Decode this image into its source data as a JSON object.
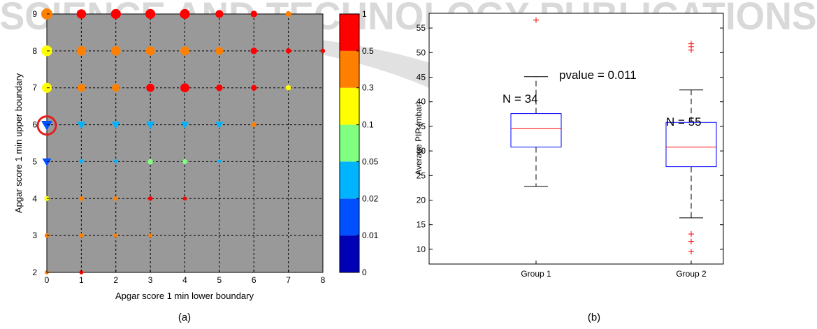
{
  "watermark": {
    "text": "SCIENCE AND TECHNOLOGY PUBLICATIONS",
    "color": "#d9d9d9"
  },
  "panels": {
    "a": "(a)",
    "b": "(b)"
  },
  "chart_data": [
    {
      "type": "scatter",
      "xlabel": "Apgar score 1 min lower boundary",
      "ylabel": "Apgar score 1 min upper boundary",
      "xlim": [
        0,
        8
      ],
      "ylim": [
        2,
        9
      ],
      "xticks": [
        "0",
        "1",
        "2",
        "3",
        "4",
        "5",
        "6",
        "7",
        "8"
      ],
      "yticks": [
        "2",
        "3",
        "4",
        "5",
        "6",
        "7",
        "8",
        "9"
      ],
      "grid": true,
      "background": "#999999",
      "colorbar": {
        "labels": [
          "0",
          "0.01",
          "0.02",
          "0.05",
          "0.1",
          "0.3",
          "0.5",
          "1"
        ],
        "colors": [
          "#0000b4",
          "#0050ff",
          "#00b4ff",
          "#80ff80",
          "#ffff00",
          "#ff8000",
          "#ff0000"
        ]
      },
      "points": [
        {
          "x": 0,
          "y": 9,
          "v": 0.4,
          "size": 1.0
        },
        {
          "x": 1,
          "y": 9,
          "v": 0.8,
          "size": 0.8
        },
        {
          "x": 2,
          "y": 9,
          "v": 0.8,
          "size": 0.85
        },
        {
          "x": 3,
          "y": 9,
          "v": 0.8,
          "size": 0.85
        },
        {
          "x": 4,
          "y": 9,
          "v": 0.8,
          "size": 0.85
        },
        {
          "x": 5,
          "y": 9,
          "v": 0.8,
          "size": 0.6
        },
        {
          "x": 6,
          "y": 9,
          "v": 0.8,
          "size": 0.45
        },
        {
          "x": 7,
          "y": 9,
          "v": 0.4,
          "size": 0.35
        },
        {
          "x": 0,
          "y": 8,
          "v": 0.2,
          "size": 0.95
        },
        {
          "x": 1,
          "y": 8,
          "v": 0.4,
          "size": 0.8
        },
        {
          "x": 2,
          "y": 8,
          "v": 0.4,
          "size": 0.8
        },
        {
          "x": 3,
          "y": 8,
          "v": 0.4,
          "size": 0.75
        },
        {
          "x": 4,
          "y": 8,
          "v": 0.4,
          "size": 0.75
        },
        {
          "x": 5,
          "y": 8,
          "v": 0.4,
          "size": 0.6
        },
        {
          "x": 6,
          "y": 8,
          "v": 0.8,
          "size": 0.45
        },
        {
          "x": 7,
          "y": 8,
          "v": 0.8,
          "size": 0.3
        },
        {
          "x": 8,
          "y": 8,
          "v": 0.8,
          "size": 0.2
        },
        {
          "x": 0,
          "y": 7,
          "v": 0.2,
          "size": 0.85
        },
        {
          "x": 1,
          "y": 7,
          "v": 0.4,
          "size": 0.6
        },
        {
          "x": 2,
          "y": 7,
          "v": 0.4,
          "size": 0.6
        },
        {
          "x": 3,
          "y": 7,
          "v": 0.8,
          "size": 0.65
        },
        {
          "x": 4,
          "y": 7,
          "v": 0.8,
          "size": 0.75
        },
        {
          "x": 5,
          "y": 7,
          "v": 0.8,
          "size": 0.45
        },
        {
          "x": 6,
          "y": 7,
          "v": 0.8,
          "size": 0.35
        },
        {
          "x": 7,
          "y": 7,
          "v": 0.2,
          "size": 0.3
        },
        {
          "x": 0,
          "y": 6,
          "v": 0.015,
          "size": 1.0,
          "shape": "triangle",
          "highlight": true
        },
        {
          "x": 1,
          "y": 6,
          "v": 0.03,
          "size": 0.7,
          "shape": "triangle"
        },
        {
          "x": 2,
          "y": 6,
          "v": 0.03,
          "size": 0.7,
          "shape": "triangle"
        },
        {
          "x": 3,
          "y": 6,
          "v": 0.03,
          "size": 0.7,
          "shape": "triangle"
        },
        {
          "x": 4,
          "y": 6,
          "v": 0.03,
          "size": 0.6,
          "shape": "triangle"
        },
        {
          "x": 5,
          "y": 6,
          "v": 0.03,
          "size": 0.6,
          "shape": "triangle"
        },
        {
          "x": 6,
          "y": 6,
          "v": 0.4,
          "size": 0.25
        },
        {
          "x": 0,
          "y": 5,
          "v": 0.015,
          "size": 0.75,
          "shape": "triangle"
        },
        {
          "x": 1,
          "y": 5,
          "v": 0.03,
          "size": 0.35,
          "shape": "triangle"
        },
        {
          "x": 2,
          "y": 5,
          "v": 0.03,
          "size": 0.3,
          "shape": "triangle"
        },
        {
          "x": 3,
          "y": 5,
          "v": 0.07,
          "size": 0.3
        },
        {
          "x": 4,
          "y": 5,
          "v": 0.07,
          "size": 0.25
        },
        {
          "x": 5,
          "y": 5,
          "v": 0.03,
          "size": 0.25,
          "shape": "triangle"
        },
        {
          "x": 0,
          "y": 4,
          "v": 0.2,
          "size": 0.25
        },
        {
          "x": 1,
          "y": 4,
          "v": 0.4,
          "size": 0.2
        },
        {
          "x": 2,
          "y": 4,
          "v": 0.4,
          "size": 0.2
        },
        {
          "x": 3,
          "y": 4,
          "v": 0.8,
          "size": 0.2
        },
        {
          "x": 4,
          "y": 4,
          "v": 0.8,
          "size": 0.15
        },
        {
          "x": 0,
          "y": 3,
          "v": 0.4,
          "size": 0.2
        },
        {
          "x": 1,
          "y": 3,
          "v": 0.4,
          "size": 0.2
        },
        {
          "x": 2,
          "y": 3,
          "v": 0.4,
          "size": 0.15
        },
        {
          "x": 3,
          "y": 3,
          "v": 0.4,
          "size": 0.15
        },
        {
          "x": 0,
          "y": 2,
          "v": 0.4,
          "size": 0.15
        },
        {
          "x": 1,
          "y": 2,
          "v": 0.8,
          "size": 0.15
        }
      ]
    },
    {
      "type": "box",
      "categories": [
        "Group 1",
        "Group 2"
      ],
      "ylabel": "Average PIP (mbar)",
      "ylim": [
        7,
        58
      ],
      "yticks": [
        "10",
        "15",
        "20",
        "25",
        "30",
        "35",
        "40",
        "45",
        "50",
        "55"
      ],
      "annotation": "pvalue = 0.011",
      "boxes": [
        {
          "name": "Group 1",
          "n_label": "N = 34",
          "q1": 30.8,
          "median": 34.6,
          "q3": 37.6,
          "whisker_low": 22.8,
          "whisker_high": 45.1,
          "outliers": [
            56.6
          ]
        },
        {
          "name": "Group 2",
          "n_label": "N = 55",
          "q1": 26.8,
          "median": 30.8,
          "q3": 35.8,
          "whisker_low": 16.4,
          "whisker_high": 42.4,
          "outliers": [
            51.8,
            51.2,
            50.5,
            13.1,
            11.6,
            9.5
          ]
        }
      ],
      "colors": {
        "box": "#0000ff",
        "median": "#ff0000",
        "outlier": "#ff0000",
        "whisker": "#000000"
      }
    }
  ]
}
